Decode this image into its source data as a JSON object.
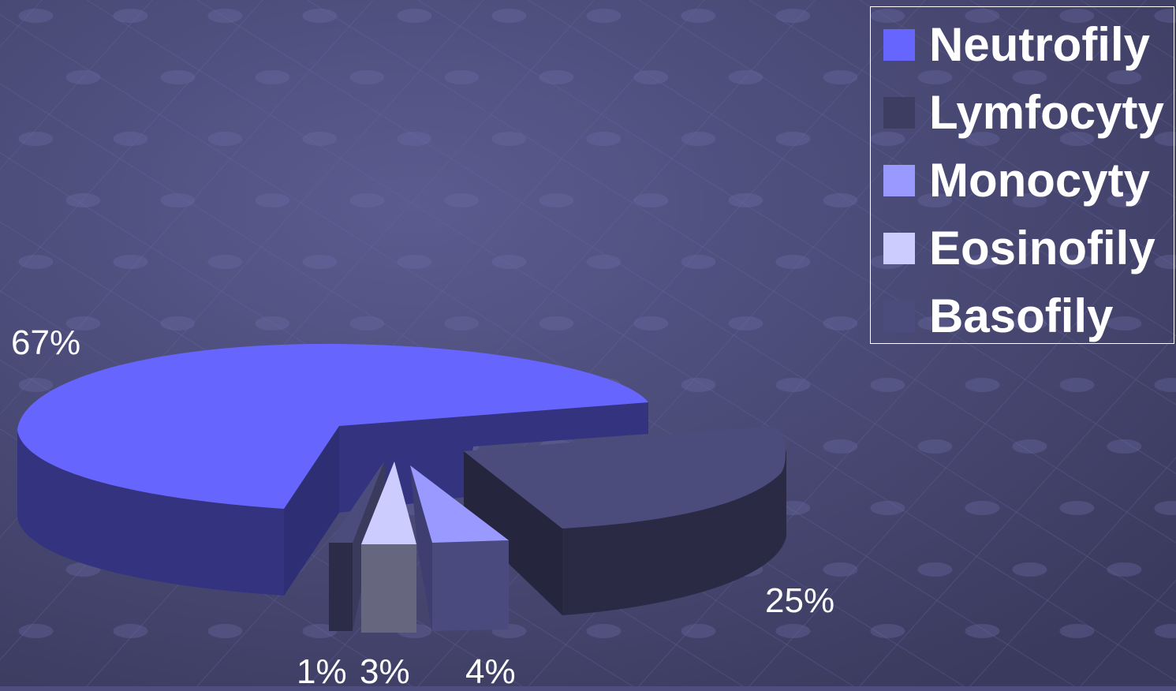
{
  "chart_data": {
    "type": "pie",
    "style": "3d-exploded",
    "categories": [
      "Neutrofily",
      "Lymfocyty",
      "Monocyty",
      "Eosinofily",
      "Basofily"
    ],
    "values": [
      67,
      25,
      4,
      3,
      1
    ],
    "data_labels": [
      "67%",
      "25%",
      "4%",
      "3%",
      "1%"
    ],
    "colors": [
      "#6666ff",
      "#4c4c7c",
      "#9999ff",
      "#ccccff",
      "#3a3a5c"
    ],
    "legend": {
      "placement": "top-right",
      "entries": [
        {
          "label": "Neutrofily",
          "color": "#6666ff"
        },
        {
          "label": "Lymfocyty",
          "color": "#3d3d62"
        },
        {
          "label": "Monocyty",
          "color": "#9999ff"
        },
        {
          "label": "Eosinofily",
          "color": "#ccccff"
        },
        {
          "label": "Basofily",
          "color": "#4c4c7c"
        }
      ]
    }
  },
  "background": {
    "color": "#4d4d7e"
  }
}
